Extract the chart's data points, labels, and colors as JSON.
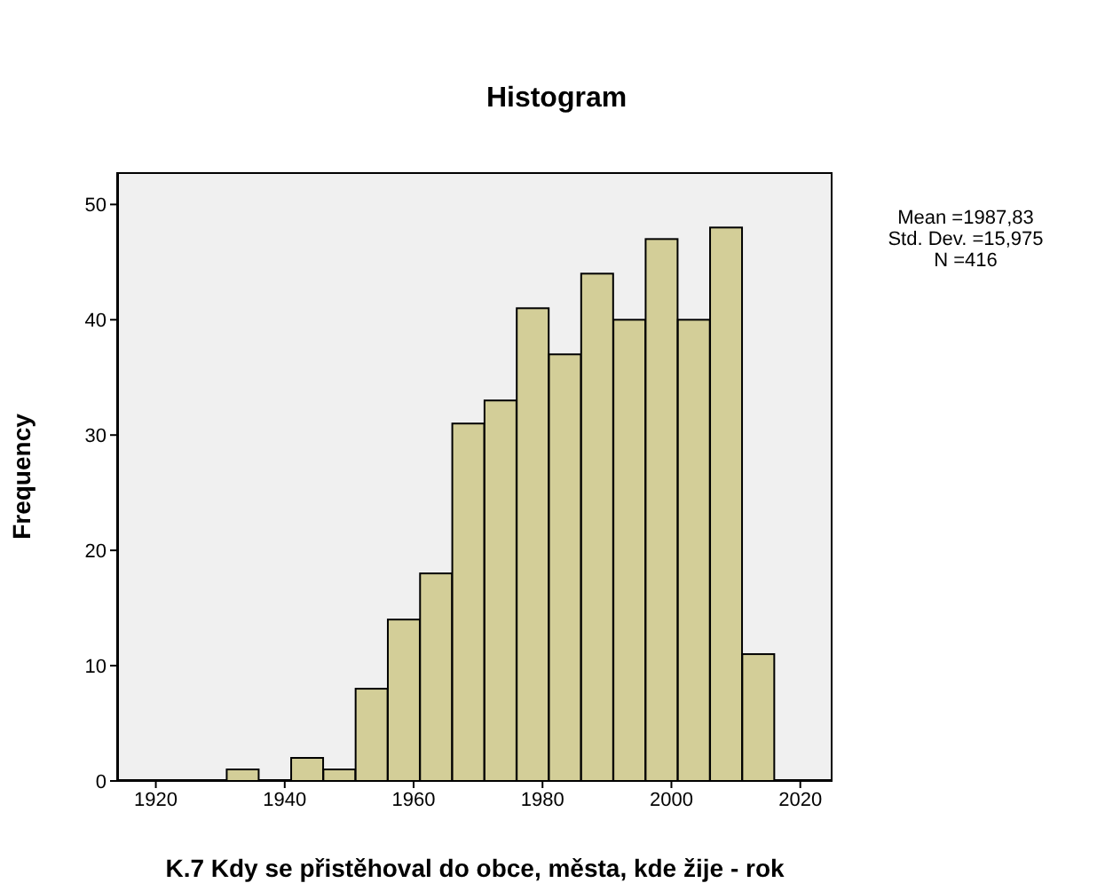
{
  "chart_data": {
    "type": "histogram",
    "title": "Histogram",
    "xlabel": "K.7 Kdy se přistěhoval do obce, města, kde žije - rok",
    "ylabel": "Frequency",
    "bins": [
      1931,
      1936,
      1941,
      1946,
      1951,
      1956,
      1961,
      1966,
      1971,
      1976,
      1981,
      1986,
      1991,
      1996,
      2001,
      2006,
      2011,
      2016
    ],
    "values": [
      1,
      0,
      2,
      1,
      8,
      14,
      18,
      31,
      33,
      41,
      37,
      44,
      40,
      47,
      40,
      48,
      11
    ],
    "color": "#d3ce98",
    "xlim": [
      1914,
      2025
    ],
    "xticks": [
      1920,
      1940,
      1960,
      1980,
      2000,
      2020
    ],
    "ylim": [
      0,
      52.8
    ],
    "yticks": [
      0,
      10,
      20,
      30,
      40,
      50
    ],
    "annotations": [
      "Mean =1987,83",
      "Std. Dev. =15,975",
      "N =416"
    ]
  }
}
